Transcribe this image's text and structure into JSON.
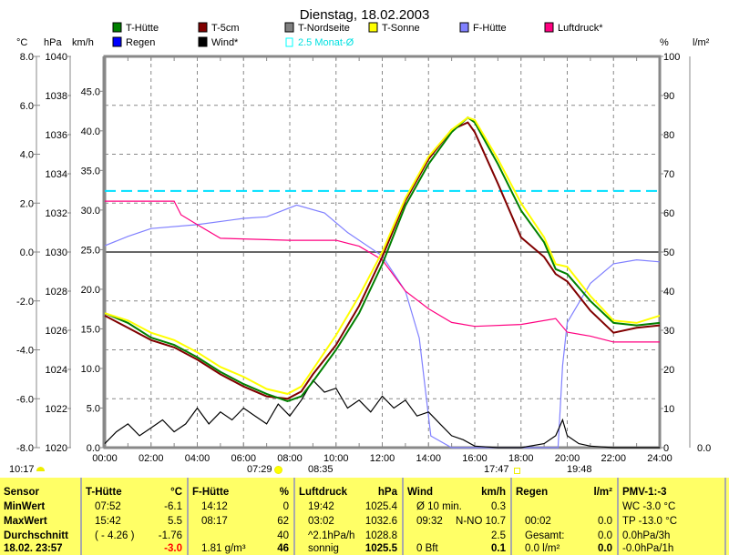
{
  "chart_data": {
    "type": "line",
    "title": "Dienstag, 18.02.2003",
    "x_label": "time (h)",
    "x_ticks": [
      "00:00",
      "02:00",
      "04:00",
      "06:00",
      "08:00",
      "10:00",
      "12:00",
      "14:00",
      "16:00",
      "18:00",
      "20:00",
      "22:00",
      "24:00"
    ],
    "axes": {
      "celsius": {
        "unit": "°C",
        "range": [
          -8,
          8
        ],
        "ticks": [
          "8.0",
          "6.0",
          "2.0",
          "0.0",
          "-2.0",
          "-6.0",
          "-8.0"
        ],
        "tick_values": [
          8,
          6,
          2,
          0,
          -2,
          -6,
          -8
        ],
        "extra_ticks": [
          {
            "v": 4,
            "t": "4.0"
          },
          {
            "v": -4,
            "t": "-4.0"
          }
        ]
      },
      "hpa": {
        "unit": "hPa",
        "range": [
          1020,
          1040
        ],
        "ticks": [
          "1040",
          "1038",
          "1036",
          "1034",
          "1032",
          "1030",
          "1028",
          "1026",
          "1024",
          "1022",
          "1020"
        ],
        "tick_values": [
          1040,
          1038,
          1036,
          1034,
          1032,
          1030,
          1028,
          1026,
          1024,
          1022,
          1020
        ]
      },
      "kmh": {
        "unit": "km/h",
        "range": [
          0,
          49.4
        ],
        "ticks": [
          "45.0",
          "40.0",
          "35.0",
          "30.0",
          "25.0",
          "20.0",
          "15.0",
          "10.0",
          "5.0",
          "0.0"
        ],
        "tick_values": [
          45,
          40,
          35,
          30,
          25,
          20,
          15,
          10,
          5,
          0
        ]
      },
      "percent": {
        "unit": "%",
        "range": [
          0,
          100
        ],
        "ticks": [
          "100",
          "90",
          "80",
          "70",
          "60",
          "50",
          "40",
          "30",
          "20",
          "10",
          "0"
        ],
        "tick_values": [
          100,
          90,
          80,
          70,
          60,
          50,
          40,
          30,
          20,
          10,
          0
        ]
      },
      "rain": {
        "unit": "l/m²",
        "range": [
          0,
          1
        ],
        "ticks": [
          "0.0"
        ],
        "tick_values": [
          0
        ]
      }
    },
    "legend": [
      {
        "name": "T-Hütte",
        "color": "#008000"
      },
      {
        "name": "T-5cm",
        "color": "#800000"
      },
      {
        "name": "T-Nordseite",
        "color": "#808080"
      },
      {
        "name": "T-Sonne",
        "color": "#ffff00"
      },
      {
        "name": "F-Hütte",
        "color": "#8080ff"
      },
      {
        "name": "Luftdruck*",
        "color": "#ff0080"
      },
      {
        "name": "Regen",
        "color": "#0000ff"
      },
      {
        "name": "Wind*",
        "color": "#000000"
      },
      {
        "name": "2.5 Monat-Ø",
        "color": "#00ffff"
      }
    ],
    "monthly_avg_celsius": 2.5,
    "series": [
      {
        "name": "T-Hütte",
        "axis": "celsius",
        "color": "#008000",
        "x": [
          0,
          1,
          2,
          3,
          4,
          5,
          6,
          7,
          7.9,
          8.5,
          9,
          10,
          11,
          12,
          13,
          14,
          15,
          15.7,
          16,
          17,
          18,
          19,
          19.5,
          20,
          21,
          22,
          23,
          24
        ],
        "y": [
          -2.5,
          -2.9,
          -3.5,
          -3.8,
          -4.3,
          -4.9,
          -5.4,
          -5.8,
          -6.1,
          -5.9,
          -5.3,
          -4.0,
          -2.5,
          -0.5,
          1.9,
          3.6,
          4.9,
          5.5,
          5.3,
          3.6,
          1.7,
          0.4,
          -0.7,
          -0.9,
          -2.0,
          -2.9,
          -3.0,
          -2.9
        ]
      },
      {
        "name": "T-5cm",
        "axis": "celsius",
        "color": "#800000",
        "x": [
          0,
          1,
          2,
          3,
          4,
          5,
          6,
          7,
          7.9,
          8.5,
          9,
          10,
          11,
          12,
          13,
          14,
          15,
          15.7,
          16,
          17,
          18,
          19,
          19.5,
          20,
          21,
          22,
          23,
          24
        ],
        "y": [
          -2.6,
          -3.1,
          -3.6,
          -3.9,
          -4.4,
          -5.0,
          -5.5,
          -5.9,
          -6.0,
          -5.7,
          -5.0,
          -3.8,
          -2.2,
          -0.2,
          2.1,
          3.8,
          5.0,
          5.3,
          4.9,
          2.8,
          0.6,
          -0.2,
          -0.9,
          -1.2,
          -2.4,
          -3.3,
          -3.1,
          -3.0
        ]
      },
      {
        "name": "T-Sonne",
        "axis": "celsius",
        "color": "#ffff00",
        "x": [
          0,
          1,
          2,
          3,
          4,
          5,
          6,
          7,
          7.9,
          8.5,
          9,
          10,
          11,
          12,
          13,
          14,
          15,
          15.7,
          16,
          17,
          18,
          19,
          19.5,
          20,
          21,
          22,
          23,
          24
        ],
        "y": [
          -2.5,
          -2.8,
          -3.3,
          -3.6,
          -4.1,
          -4.7,
          -5.1,
          -5.6,
          -5.8,
          -5.5,
          -4.8,
          -3.4,
          -1.8,
          0.0,
          2.2,
          3.9,
          5.0,
          5.5,
          5.4,
          3.8,
          2.0,
          0.6,
          -0.5,
          -0.6,
          -1.8,
          -2.8,
          -2.9,
          -2.6
        ]
      },
      {
        "name": "Luftdruck*",
        "axis": "hpa",
        "color": "#ff0080",
        "x": [
          0,
          2,
          3,
          3.3,
          4,
          5,
          8,
          10,
          11,
          12,
          13,
          14,
          15,
          16,
          18,
          19.5,
          20,
          21,
          22,
          24
        ],
        "y": [
          1032.6,
          1032.6,
          1032.6,
          1031.9,
          1031.4,
          1030.7,
          1030.6,
          1030.6,
          1030.3,
          1029.6,
          1028.0,
          1027.1,
          1026.4,
          1026.2,
          1026.3,
          1026.6,
          1025.9,
          1025.7,
          1025.4,
          1025.4
        ]
      },
      {
        "name": "F-Hütte",
        "axis": "percent",
        "color": "#8080ff",
        "x": [
          0,
          1,
          2,
          4,
          6,
          7,
          8.3,
          9.5,
          10.5,
          12,
          13,
          13.6,
          14.1,
          15,
          19.6,
          19.8,
          20,
          21,
          22,
          23,
          24
        ],
        "y": [
          51.6,
          54,
          56,
          57,
          58.6,
          59,
          62,
          60,
          55,
          49,
          40,
          28,
          3,
          0,
          0,
          21,
          32,
          42,
          47,
          48,
          47.5
        ]
      },
      {
        "name": "Wind*",
        "axis": "kmh",
        "color": "#000000",
        "x": [
          0,
          0.5,
          1,
          1.5,
          2,
          2.5,
          3,
          3.5,
          4,
          4.5,
          5,
          5.5,
          6,
          6.5,
          7,
          7.5,
          8,
          8.5,
          9,
          9.5,
          10,
          10.5,
          11,
          11.5,
          12,
          12.5,
          13,
          13.5,
          14,
          14.5,
          15,
          15.5,
          16,
          17,
          18,
          19,
          19.5,
          19.8,
          20,
          20.5,
          21,
          22,
          23,
          24
        ],
        "y": [
          0.5,
          2,
          3,
          1.5,
          2.5,
          3.5,
          2,
          3,
          5,
          3,
          4.5,
          3.5,
          5,
          4,
          3,
          5.5,
          4,
          6,
          8.5,
          7,
          7.5,
          5,
          6,
          4.5,
          6.5,
          5,
          6,
          4,
          4.5,
          3,
          1.5,
          1,
          0.2,
          0,
          0,
          0.5,
          1.5,
          3.5,
          1.5,
          0.5,
          0.2,
          0,
          0,
          0
        ]
      }
    ]
  },
  "header": {
    "title": "Dienstag, 18.02.2003"
  },
  "axis_units": {
    "celsius": "°C",
    "hpa": "hPa",
    "kmh": "km/h",
    "percent": "%",
    "rain": "l/m²"
  },
  "events": {
    "left": "10:17",
    "sunrise": "07:29",
    "e2": "08:35",
    "sunset": "17:47",
    "e4": "19:48"
  },
  "table": {
    "sensor": {
      "h": "Sensor",
      "r": [
        "MinWert",
        "MaxWert",
        "Durchschnitt",
        "18.02. 23:57"
      ]
    },
    "thuette": {
      "h": "T-Hütte",
      "u": "°C",
      "r1": [
        "07:52",
        "15:42",
        "( - 4.26 )",
        ""
      ],
      "r2": [
        "-6.1",
        "5.5",
        "-1.76",
        "-3.0"
      ]
    },
    "fhuette": {
      "h": "F-Hütte",
      "u": "%",
      "r1": [
        "14:12",
        "08:17",
        "",
        "1.81 g/m³"
      ],
      "r2": [
        "0",
        "62",
        "40",
        "46"
      ]
    },
    "luft": {
      "h": "Luftdruck",
      "u": "hPa",
      "r1": [
        "19:42",
        "03:02",
        "^2.1hPa/h",
        "sonnig"
      ],
      "r2": [
        "1025.4",
        "1032.6",
        "1028.8",
        "1025.5"
      ]
    },
    "wind": {
      "h": "Wind",
      "u": "km/h",
      "r1": [
        "Ø 10 min.",
        "09:32",
        "",
        "0 Bft"
      ],
      "r2": [
        "0.3",
        "N-NO 10.7",
        "2.5",
        "0.1"
      ]
    },
    "regen": {
      "h": "Regen",
      "u": "l/m²",
      "r1": [
        "",
        "00:02",
        "Gesamt:",
        "0.0 l/m²"
      ],
      "r2": [
        "",
        "0.0",
        "0.0",
        "0.0"
      ]
    },
    "pmv": {
      "h": "PMV-1:-3",
      "r": [
        "WC -3.0 °C",
        "TP -13.0 °C",
        "0.0hPa/3h",
        "-0.0hPa/1h"
      ]
    }
  }
}
